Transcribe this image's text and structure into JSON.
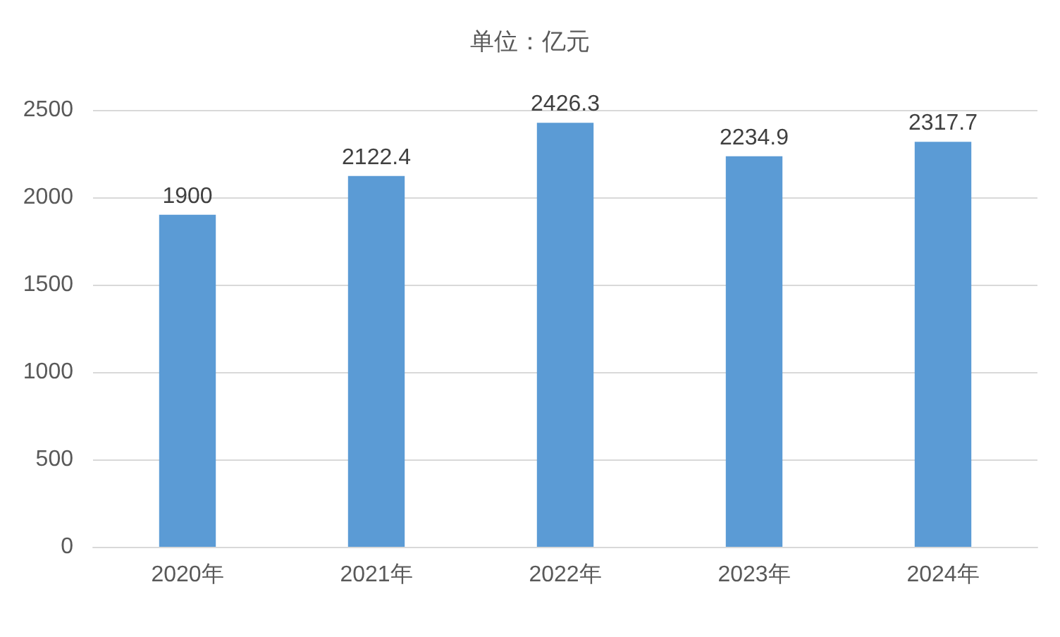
{
  "chart_data": {
    "type": "bar",
    "title": "单位：亿元",
    "categories": [
      "2020年",
      "2021年",
      "2022年",
      "2023年",
      "2024年"
    ],
    "values": [
      1900,
      2122.4,
      2426.3,
      2234.9,
      2317.7
    ],
    "color": "#5b9bd5",
    "ylim": [
      0,
      2500
    ],
    "yticks": [
      0,
      500,
      1000,
      1500,
      2000,
      2500
    ],
    "grid": "y",
    "data_labels": true
  }
}
